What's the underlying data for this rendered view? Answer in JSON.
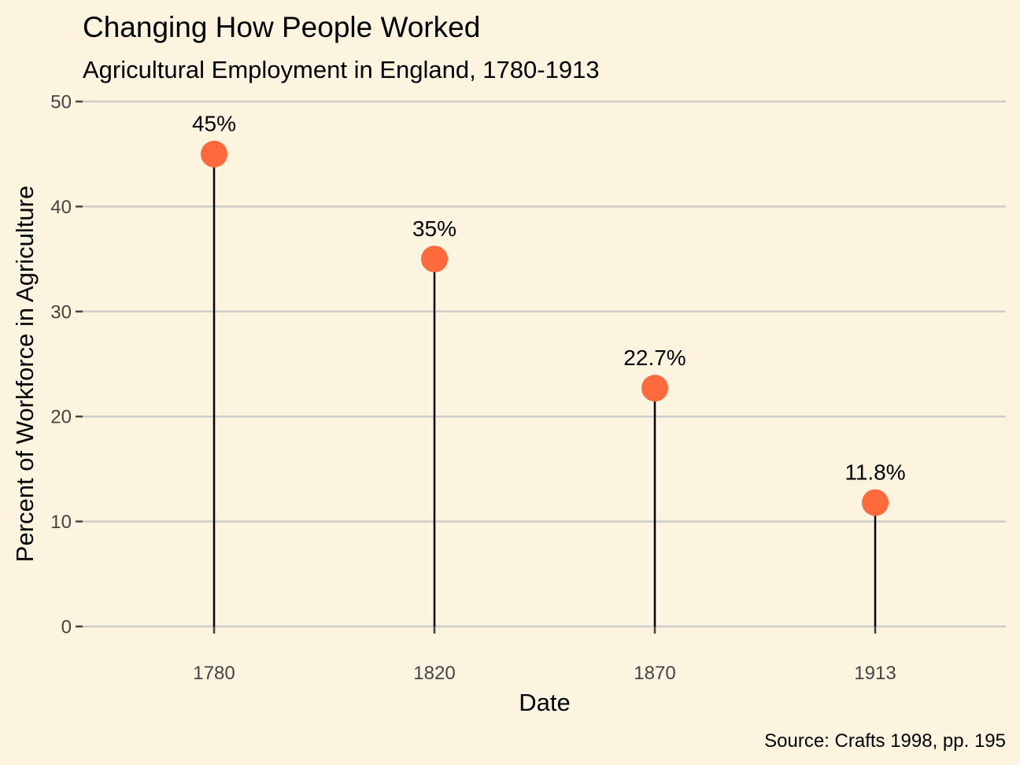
{
  "chart_data": {
    "type": "lollipop",
    "title": "Changing How People Worked",
    "subtitle": "Agricultural Employment in England, 1780-1913",
    "xlabel": "Date",
    "ylabel": "Percent of Workforce in Agriculture",
    "caption": "Source: Crafts 1998, pp. 195",
    "categories": [
      "1780",
      "1820",
      "1870",
      "1913"
    ],
    "values": [
      45,
      35,
      22.7,
      11.8
    ],
    "data_labels": [
      "45%",
      "35%",
      "22.7%",
      "11.8%"
    ],
    "ylim": [
      0,
      50
    ],
    "yticks": [
      0,
      10,
      20,
      30,
      40,
      50
    ],
    "ytick_labels": [
      "0",
      "10",
      "20",
      "30",
      "40",
      "50"
    ],
    "grid": "horizontal",
    "legend": "none",
    "colors": {
      "background": "#FCF4DE",
      "point": "#FF6A3D",
      "stem": "#000000",
      "grid": "#CCCCCC"
    }
  }
}
